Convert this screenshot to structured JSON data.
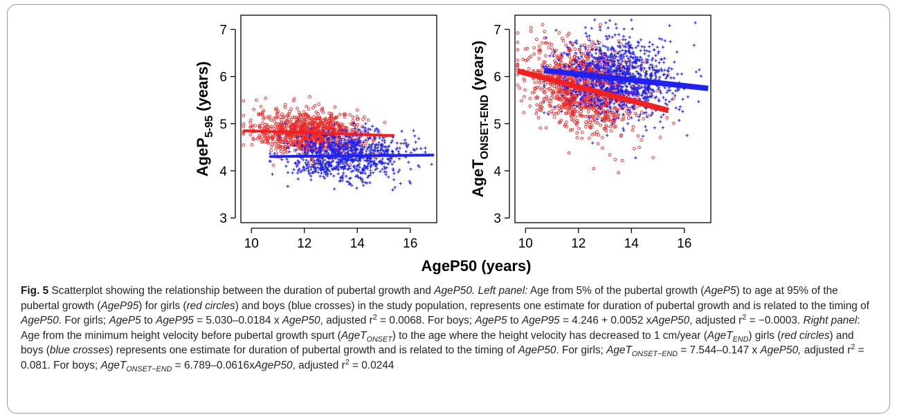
{
  "chart_data": [
    {
      "type": "scatter",
      "panel": "left",
      "ylabel": {
        "main": "AgeP",
        "sub": "5-95",
        "suffix": " (years)"
      },
      "xlabel": "AgeP50 (years)",
      "xlim": [
        9.6,
        17.0
      ],
      "ylim": [
        2.9,
        7.3
      ],
      "xticks": [
        "10",
        "12",
        "14",
        "16"
      ],
      "yticks": [
        "3",
        "4",
        "5",
        "6",
        "7"
      ],
      "series": [
        {
          "marker": "circle",
          "color": "#ee2222",
          "cloud": {
            "x_mean": 12.2,
            "x_sd": 1.05,
            "x_min": 9.7,
            "x_max": 15.6,
            "y_sd": 0.24,
            "n": 900,
            "y_min": 3.5,
            "y_max": 5.6
          },
          "fit": {
            "intercept": 5.03,
            "slope": -0.0184,
            "x_range": [
              9.7,
              15.4
            ]
          }
        },
        {
          "marker": "plus",
          "color": "#2222ee",
          "cloud": {
            "x_mean": 13.6,
            "x_sd": 1.1,
            "x_min": 10.7,
            "x_max": 16.9,
            "y_sd": 0.26,
            "n": 900,
            "y_min": 3.2,
            "y_max": 5.0
          },
          "fit": {
            "intercept": 4.246,
            "slope": 0.0052,
            "x_range": [
              10.7,
              16.9
            ]
          }
        }
      ]
    },
    {
      "type": "scatter",
      "panel": "right",
      "ylabel": {
        "main": "AgeT",
        "sub": "ONSET-END",
        "suffix": " (years)"
      },
      "xlim": [
        9.6,
        17.0
      ],
      "ylim": [
        2.9,
        7.3
      ],
      "xticks": [
        "10",
        "12",
        "14",
        "16"
      ],
      "yticks": [
        "3",
        "4",
        "5",
        "6",
        "7"
      ],
      "series": [
        {
          "marker": "circle",
          "color": "#ee2222",
          "cloud": {
            "x_mean": 12.2,
            "x_sd": 1.05,
            "x_min": 9.7,
            "x_max": 15.6,
            "y_sd": 0.45,
            "n": 1100,
            "y_min": 3.9,
            "y_max": 7.1
          },
          "fit": {
            "intercept": 7.544,
            "slope": -0.147,
            "x_range": [
              9.7,
              15.4
            ]
          }
        },
        {
          "marker": "plus",
          "color": "#2222ee",
          "cloud": {
            "x_mean": 13.5,
            "x_sd": 1.1,
            "x_min": 10.7,
            "x_max": 16.9,
            "y_sd": 0.42,
            "n": 1100,
            "y_min": 3.8,
            "y_max": 7.2
          },
          "fit": {
            "intercept": 6.789,
            "slope": -0.0616,
            "x_range": [
              10.7,
              16.9
            ]
          }
        }
      ]
    }
  ],
  "caption": {
    "fig_label": "Fig. 5",
    "segments": [
      {
        "t": " Scatterplot showing the relationship between the duration of pubertal growth and "
      },
      {
        "t": "AgeP50. Left panel:",
        "i": true
      },
      {
        "t": " Age from 5% of the pubertal growth ("
      },
      {
        "t": "AgeP5",
        "i": true
      },
      {
        "t": ") to age at 95% of the pubertal growth ("
      },
      {
        "t": "AgeP95",
        "i": true
      },
      {
        "t": ") for girls ("
      },
      {
        "t": "red circles",
        "i": true
      },
      {
        "t": ") and boys (blue crosses) in the study population, represents one estimate for duration of pubertal growth and is related to the timing of "
      },
      {
        "t": "AgeP50",
        "i": true
      },
      {
        "t": ". For girls; "
      },
      {
        "t": "AgeP5",
        "i": true
      },
      {
        "t": " to "
      },
      {
        "t": "AgeP95",
        "i": true
      },
      {
        "t": " = 5.030–0.0184 x "
      },
      {
        "t": "AgeP50",
        "i": true
      },
      {
        "t": ", adjusted r"
      },
      {
        "t": "2",
        "sup": true
      },
      {
        "t": " = 0.0068. For boys; "
      },
      {
        "t": "AgeP5",
        "i": true
      },
      {
        "t": " to "
      },
      {
        "t": "AgeP95",
        "i": true
      },
      {
        "t": " = 4.246 + 0.0052 x"
      },
      {
        "t": "AgeP50",
        "i": true
      },
      {
        "t": ", adjusted r"
      },
      {
        "t": "2",
        "sup": true
      },
      {
        "t": " = −0.0003. "
      },
      {
        "t": "Right panel",
        "i": true
      },
      {
        "t": ": Age from the minimum height velocity before pubertal growth spurt ("
      },
      {
        "t": "AgeT",
        "i": true
      },
      {
        "t": "ONSET",
        "i": true,
        "sub": true
      },
      {
        "t": ") to the age where the height velocity has decreased to 1 cm/year ("
      },
      {
        "t": "AgeT",
        "i": true
      },
      {
        "t": "END",
        "i": true,
        "sub": true
      },
      {
        "t": ") girls ("
      },
      {
        "t": "red circles",
        "i": true
      },
      {
        "t": ") and boys ("
      },
      {
        "t": "blue crosses",
        "i": true
      },
      {
        "t": ") represents one estimate for duration of pubertal growth and is related to the timing of "
      },
      {
        "t": "AgeP50",
        "i": true
      },
      {
        "t": ". For girls; "
      },
      {
        "t": "AgeT",
        "i": true
      },
      {
        "t": "ONSET−END",
        "i": true,
        "sub": true
      },
      {
        "t": " = 7.544–0.147 x "
      },
      {
        "t": "AgeP50,",
        "i": true
      },
      {
        "t": " adjusted r"
      },
      {
        "t": "2",
        "sup": true
      },
      {
        "t": " = 0.081. For boys; "
      },
      {
        "t": "AgeT",
        "i": true
      },
      {
        "t": "ONSET−END",
        "i": true,
        "sub": true
      },
      {
        "t": " = 6.789–0.0616x"
      },
      {
        "t": "AgeP50",
        "i": true
      },
      {
        "t": ", adjusted r"
      },
      {
        "t": "2",
        "sup": true
      },
      {
        "t": " = 0.0244"
      }
    ]
  }
}
